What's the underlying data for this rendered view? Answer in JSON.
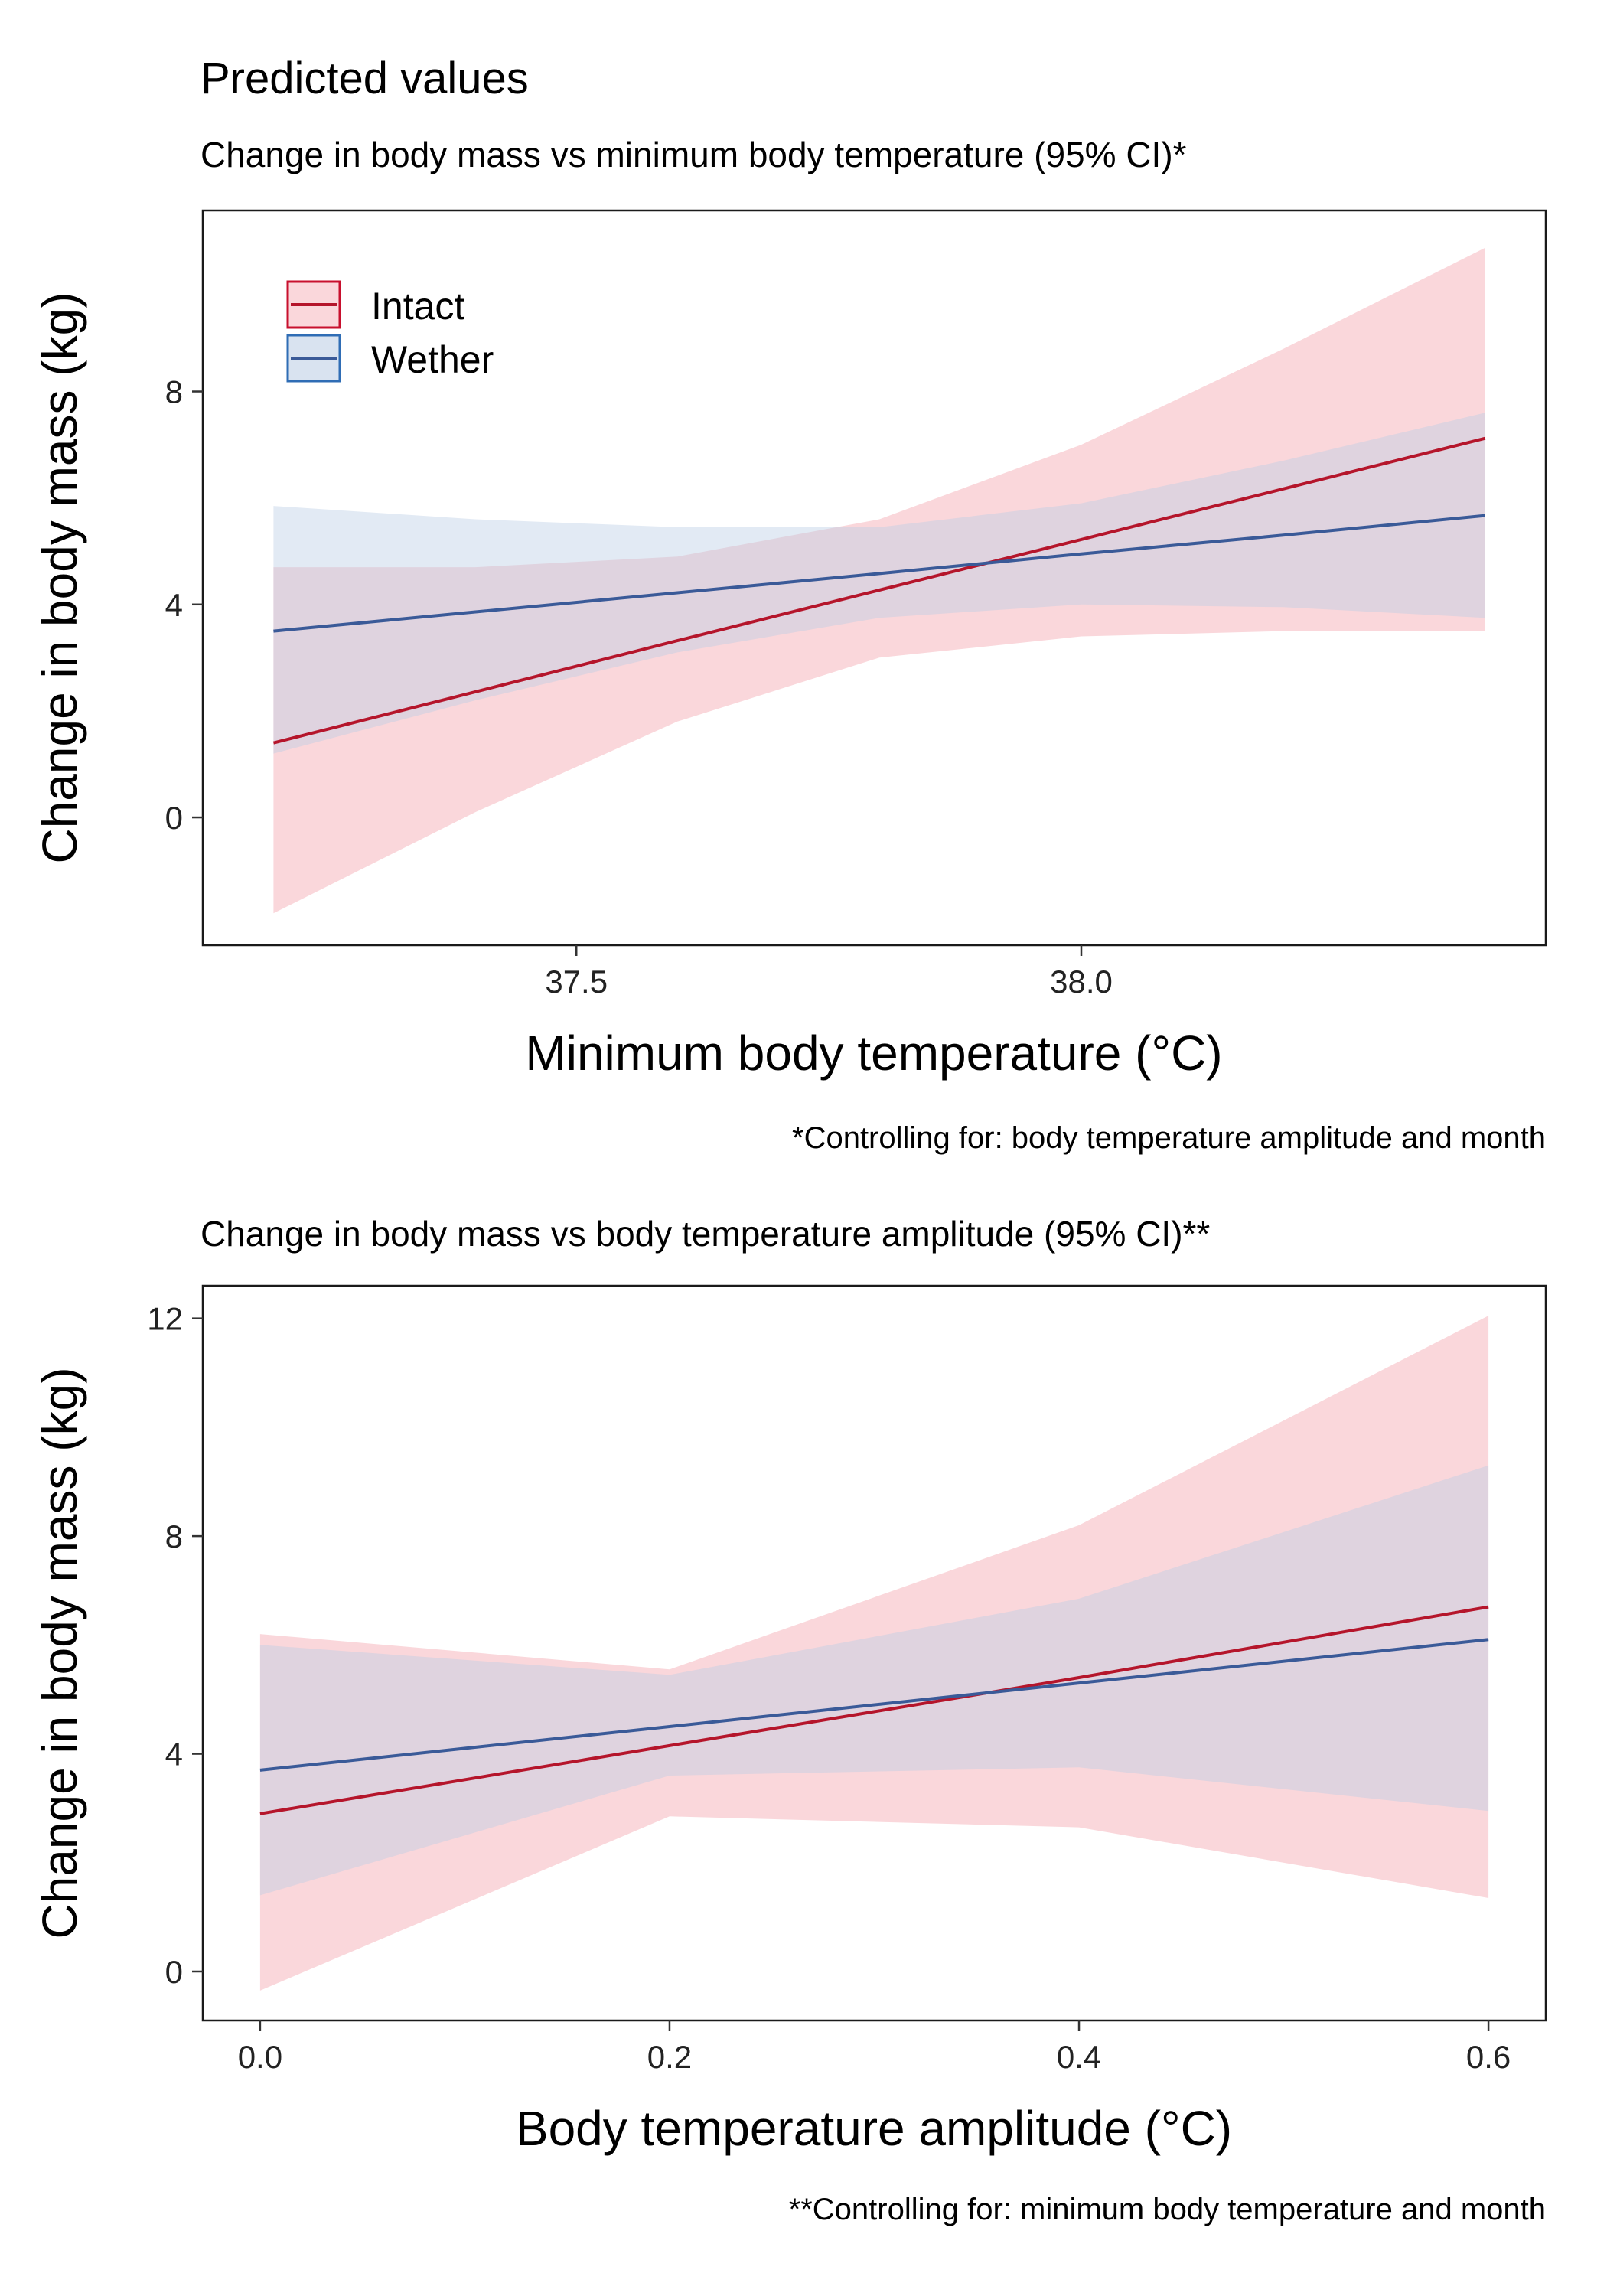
{
  "figure_title": "Predicted values",
  "colors": {
    "intact_line": "#b5152b",
    "intact_band": "#f4a6b0",
    "wether_line": "#3a5a98",
    "wether_band": "#b9cce4",
    "legend_box_intact": "#c8102e",
    "legend_box_wether": "#2f6db5"
  },
  "legend": {
    "placement": "top-left",
    "items": [
      {
        "label": "Intact",
        "series": "intact"
      },
      {
        "label": "Wether",
        "series": "wether"
      }
    ]
  },
  "chart_data": [
    {
      "type": "line",
      "title": "Change in body mass vs minimum body temperature (95% CI)*",
      "xlabel": "Minimum body temperature (°C)",
      "ylabel": "Change in body mass (kg)",
      "caption": "*Controlling for: body temperature amplitude and month",
      "xlim": [
        37.13,
        38.46
      ],
      "ylim": [
        -2.4,
        11.4
      ],
      "xticks": [
        37.5,
        38.0
      ],
      "xtick_labels": [
        "37.5",
        "38.0"
      ],
      "yticks": [
        0,
        4,
        8
      ],
      "ytick_labels": [
        "0",
        "4",
        "8"
      ],
      "grid": false,
      "show_legend": true,
      "series": [
        {
          "name": "Intact",
          "key": "intact",
          "x": [
            37.2,
            37.4,
            37.6,
            37.8,
            38.0,
            38.2,
            38.4
          ],
          "y": [
            1.4,
            2.36,
            3.32,
            4.27,
            5.22,
            6.17,
            7.12
          ],
          "ci_lower": [
            -1.8,
            0.1,
            1.8,
            3.0,
            3.4,
            3.5,
            3.5
          ],
          "ci_upper": [
            4.7,
            4.7,
            4.9,
            5.6,
            7.0,
            8.8,
            10.7
          ]
        },
        {
          "name": "Wether",
          "key": "wether",
          "x": [
            37.2,
            37.4,
            37.6,
            37.8,
            38.0,
            38.2,
            38.4
          ],
          "y": [
            3.5,
            3.86,
            4.22,
            4.58,
            4.95,
            5.3,
            5.67
          ],
          "ci_lower": [
            1.2,
            2.2,
            3.1,
            3.75,
            4.0,
            3.95,
            3.75
          ],
          "ci_upper": [
            5.85,
            5.6,
            5.45,
            5.45,
            5.9,
            6.7,
            7.6
          ]
        }
      ]
    },
    {
      "type": "line",
      "title": "Change in body mass vs body temperature amplitude (95% CI)**",
      "xlabel": "Body temperature amplitude (°C)",
      "ylabel": "Change in body mass (kg)",
      "caption": "**Controlling for: minimum body temperature and month",
      "xlim": [
        -0.028,
        0.628
      ],
      "ylim": [
        -0.9,
        12.6
      ],
      "xticks": [
        0.0,
        0.2,
        0.4,
        0.6
      ],
      "xtick_labels": [
        "0.0",
        "0.2",
        "0.4",
        "0.6"
      ],
      "yticks": [
        0,
        4,
        8,
        12
      ],
      "ytick_labels": [
        "0",
        "4",
        "8",
        "12"
      ],
      "grid": false,
      "show_legend": false,
      "series": [
        {
          "name": "Intact",
          "key": "intact",
          "x": [
            0.0,
            0.2,
            0.4,
            0.6
          ],
          "y": [
            2.9,
            4.15,
            5.4,
            6.7
          ],
          "ci_lower": [
            -0.35,
            2.85,
            2.65,
            1.35
          ],
          "ci_upper": [
            6.2,
            5.55,
            8.2,
            12.05
          ]
        },
        {
          "name": "Wether",
          "key": "wether",
          "x": [
            0.0,
            0.2,
            0.4,
            0.6
          ],
          "y": [
            3.7,
            4.5,
            5.3,
            6.1
          ],
          "ci_lower": [
            1.4,
            3.6,
            3.75,
            2.95
          ],
          "ci_upper": [
            6.0,
            5.45,
            6.85,
            9.3
          ]
        }
      ]
    }
  ]
}
